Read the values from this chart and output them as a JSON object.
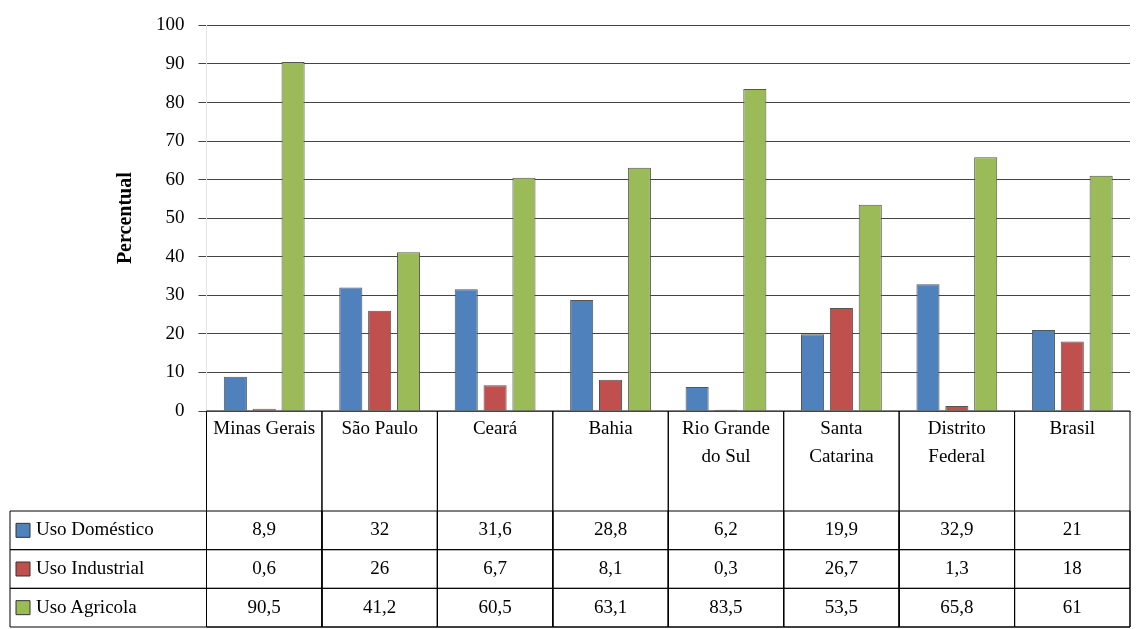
{
  "chart_data": {
    "type": "bar",
    "ylabel": "Percentual",
    "categories": [
      "Minas Gerais",
      "São Paulo",
      "Ceará",
      "Bahia",
      "Rio Grande do Sul",
      "Santa Catarina",
      "Distrito Federal",
      "Brasil"
    ],
    "series": [
      {
        "name": "Uso Doméstico",
        "color": "#4f81bd",
        "values": [
          8.9,
          32,
          31.6,
          28.8,
          6.2,
          19.9,
          32.9,
          21
        ],
        "value_labels": [
          "8,9",
          "32",
          "31,6",
          "28,8",
          "6,2",
          "19,9",
          "32,9",
          "21"
        ]
      },
      {
        "name": "Uso Industrial",
        "color": "#c0504d",
        "values": [
          0.6,
          26,
          6.7,
          8.1,
          0.3,
          26.7,
          1.3,
          18
        ],
        "value_labels": [
          "0,6",
          "26",
          "6,7",
          "8,1",
          "0,3",
          "26,7",
          "1,3",
          "18"
        ]
      },
      {
        "name": "Uso Agricola",
        "color": "#9bbb59",
        "values": [
          90.5,
          41.2,
          60.5,
          63.1,
          83.5,
          53.5,
          65.8,
          61
        ],
        "value_labels": [
          "90,5",
          "41,2",
          "60,5",
          "63,1",
          "83,5",
          "53,5",
          "65,8",
          "61"
        ]
      }
    ],
    "ylim": [
      0,
      100
    ],
    "yticks": [
      0,
      10,
      20,
      30,
      40,
      50,
      60,
      70,
      80,
      90,
      100
    ],
    "grid": "y",
    "legend": "bottom left"
  }
}
